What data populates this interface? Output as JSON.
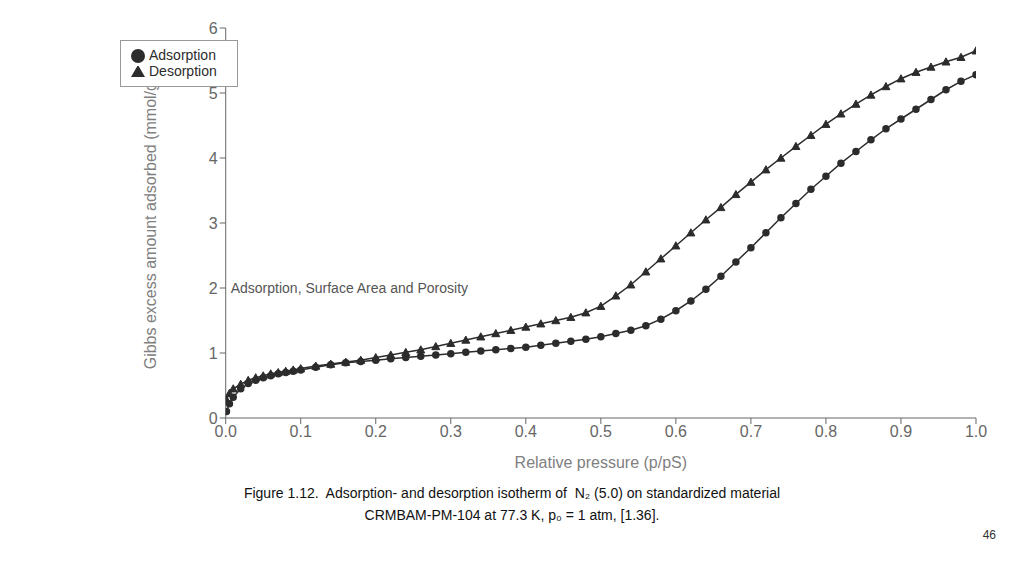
{
  "chart_data": {
    "type": "line",
    "xlabel": "Relative pressure (p/pS)",
    "ylabel": "Gibbs excess amount adsorbed (mmol/g)",
    "annotations": [
      {
        "text": "Adsorption, Surface Area and Porosity",
        "y": 2
      }
    ],
    "caption": [
      "Figure 1.12.  Adsorption- and desorption isotherm of  N₂ (5.0) on standardized material",
      "CRMBAM-PM-104 at 77.3 K, p₀ = 1 atm, [1.36]."
    ],
    "page_number": "46",
    "xlim": [
      0,
      1
    ],
    "ylim": [
      0,
      6
    ],
    "xticks": [
      {
        "value": 0,
        "label": "0.0"
      },
      0.1,
      0.2,
      0.3,
      0.4,
      0.5,
      0.6,
      0.7,
      0.8,
      0.9,
      {
        "value": 1,
        "label": "1.0"
      }
    ],
    "yticks": [
      0,
      1,
      2,
      3,
      4,
      5,
      6
    ],
    "grid": false,
    "legend": "upper left",
    "series": [
      {
        "name": "Adsorption",
        "color": "#2c2c2c",
        "marker": "circle",
        "x": [
          0.001,
          0.005,
          0.01,
          0.02,
          0.03,
          0.04,
          0.05,
          0.06,
          0.07,
          0.08,
          0.09,
          0.1,
          0.12,
          0.14,
          0.16,
          0.18,
          0.2,
          0.22,
          0.24,
          0.26,
          0.28,
          0.3,
          0.32,
          0.34,
          0.36,
          0.38,
          0.4,
          0.42,
          0.44,
          0.46,
          0.48,
          0.5,
          0.52,
          0.54,
          0.56,
          0.58,
          0.6,
          0.62,
          0.64,
          0.66,
          0.68,
          0.7,
          0.72,
          0.74,
          0.76,
          0.78,
          0.8,
          0.82,
          0.84,
          0.86,
          0.88,
          0.9,
          0.92,
          0.94,
          0.96,
          0.98,
          1.0
        ],
        "values": [
          0.1,
          0.22,
          0.32,
          0.45,
          0.53,
          0.58,
          0.62,
          0.65,
          0.68,
          0.7,
          0.72,
          0.74,
          0.78,
          0.82,
          0.85,
          0.87,
          0.89,
          0.91,
          0.93,
          0.95,
          0.97,
          0.99,
          1.01,
          1.03,
          1.05,
          1.07,
          1.09,
          1.12,
          1.15,
          1.18,
          1.21,
          1.25,
          1.3,
          1.35,
          1.42,
          1.52,
          1.65,
          1.8,
          1.98,
          2.18,
          2.4,
          2.62,
          2.85,
          3.08,
          3.3,
          3.52,
          3.72,
          3.92,
          4.1,
          4.28,
          4.45,
          4.6,
          4.75,
          4.9,
          5.05,
          5.18,
          5.28
        ]
      },
      {
        "name": "Desorption",
        "color": "#2c2c2c",
        "marker": "triangle",
        "x": [
          1.0,
          0.98,
          0.96,
          0.94,
          0.92,
          0.9,
          0.88,
          0.86,
          0.84,
          0.82,
          0.8,
          0.78,
          0.76,
          0.74,
          0.72,
          0.7,
          0.68,
          0.66,
          0.64,
          0.62,
          0.6,
          0.58,
          0.56,
          0.54,
          0.52,
          0.5,
          0.48,
          0.46,
          0.44,
          0.42,
          0.4,
          0.38,
          0.36,
          0.34,
          0.32,
          0.3,
          0.28,
          0.26,
          0.24,
          0.22,
          0.2,
          0.18,
          0.16,
          0.14,
          0.12,
          0.1,
          0.09,
          0.08,
          0.07,
          0.06,
          0.05,
          0.04,
          0.03,
          0.02,
          0.01,
          0.005,
          0.001
        ],
        "values": [
          5.65,
          5.55,
          5.48,
          5.4,
          5.32,
          5.22,
          5.1,
          4.97,
          4.83,
          4.68,
          4.52,
          4.35,
          4.18,
          4.0,
          3.82,
          3.63,
          3.44,
          3.24,
          3.05,
          2.85,
          2.65,
          2.45,
          2.25,
          2.05,
          1.88,
          1.72,
          1.62,
          1.55,
          1.5,
          1.45,
          1.4,
          1.35,
          1.3,
          1.25,
          1.2,
          1.15,
          1.1,
          1.05,
          1.01,
          0.97,
          0.93,
          0.89,
          0.86,
          0.83,
          0.8,
          0.76,
          0.74,
          0.72,
          0.7,
          0.68,
          0.65,
          0.62,
          0.58,
          0.52,
          0.45,
          0.38,
          0.28
        ]
      }
    ]
  }
}
